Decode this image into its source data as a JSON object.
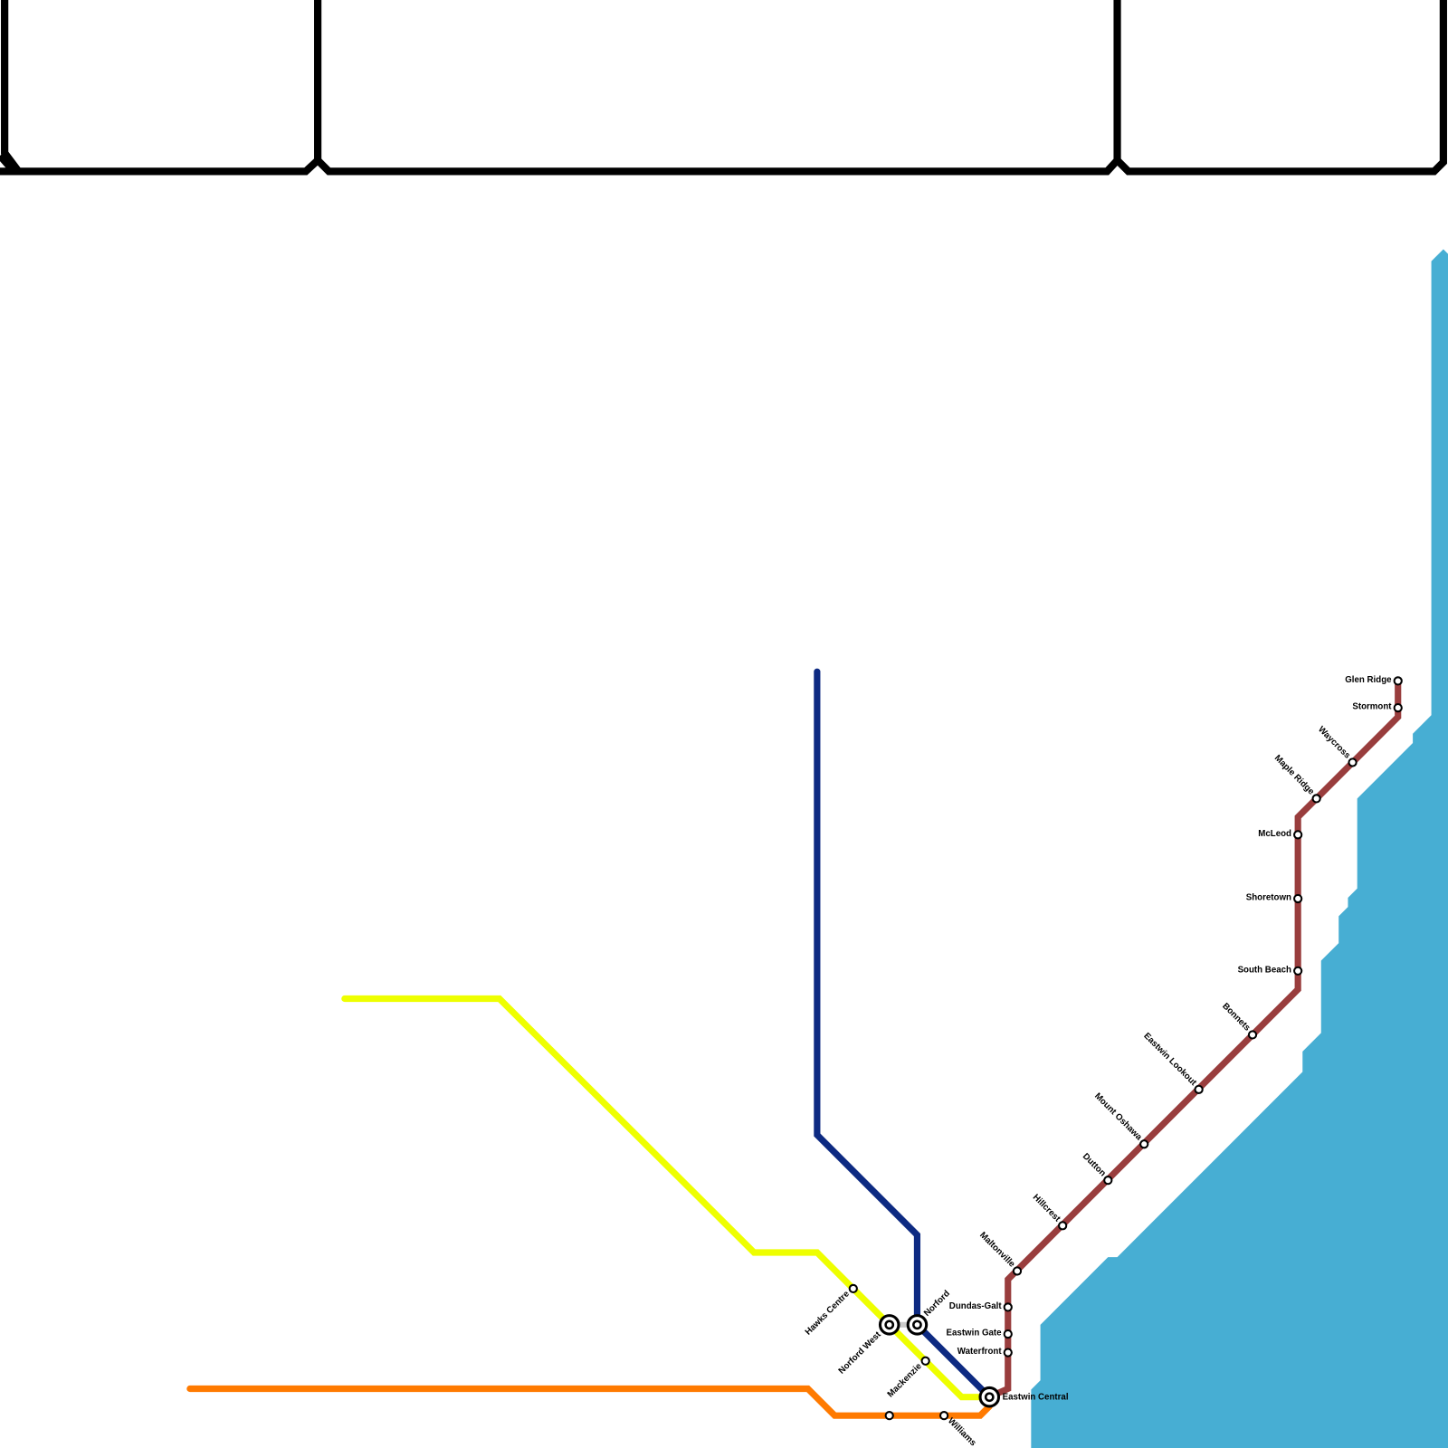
{
  "stations": [
    "Glen Ridge",
    "Stormont",
    "Waycross",
    "Maple Ridge",
    "McLeod",
    "Shoretown",
    "South Beach",
    "Bonnets",
    "Eastwin Lookout",
    "Mount Oshawa",
    "Dutton",
    "Hillcrest",
    "Maltonville",
    "Dundas-Galt",
    "Eastwin Gate",
    "Waterfront",
    "Eastwin Central",
    "Norford",
    "Norford West",
    "Hawks Centre",
    "Mackenzie",
    "Williams"
  ]
}
